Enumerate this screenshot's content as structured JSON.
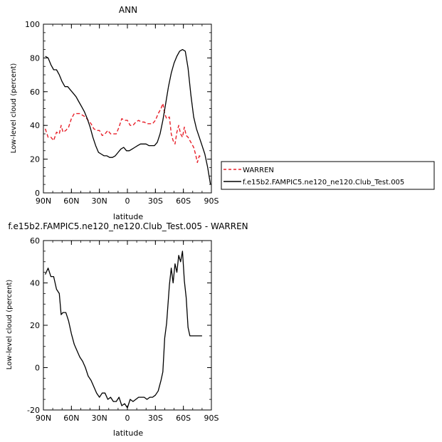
{
  "colors": {
    "model": "#000000",
    "obs": "#e8202a"
  },
  "chart_data": [
    {
      "type": "line",
      "title": "ANN",
      "xlabel": "latitude",
      "ylabel": "Low-level cloud (percent)",
      "xlim": [
        90,
        -90
      ],
      "ylim": [
        0,
        100
      ],
      "xticks": [
        90,
        60,
        30,
        0,
        -30,
        -60,
        -90
      ],
      "xtick_labels": [
        "90N",
        "60N",
        "30N",
        "0",
        "30S",
        "60S",
        "90S"
      ],
      "yticks": [
        0,
        20,
        40,
        60,
        80,
        100
      ],
      "ytick_labels": [
        "0",
        "20",
        "40",
        "60",
        "80",
        "100"
      ],
      "legend": {
        "placement": "right",
        "entries": [
          "WARREN",
          "f.e15b2.FAMPIC5.ne120_ne120.Club_Test.005"
        ]
      },
      "series": [
        {
          "name": "WARREN",
          "style": "dashed",
          "color": "#e8202a",
          "x": [
            88,
            85,
            82,
            79,
            76,
            73,
            71,
            69,
            66,
            63,
            60,
            57,
            54,
            51,
            48,
            45,
            42,
            39,
            36,
            33,
            30,
            27,
            24,
            21,
            18,
            15,
            12,
            9,
            6,
            3,
            0,
            -3,
            -6,
            -9,
            -12,
            -15,
            -18,
            -21,
            -24,
            -27,
            -30,
            -33,
            -36,
            -38,
            -40,
            -42,
            -45,
            -47,
            -49,
            -51,
            -53,
            -55,
            -57,
            -59,
            -61,
            -63,
            -65,
            -67,
            -69,
            -71,
            -73,
            -75,
            -77,
            -80
          ],
          "y": [
            38,
            33,
            33,
            31,
            36,
            35,
            40,
            36,
            37,
            39,
            44,
            47,
            47,
            47,
            46,
            45,
            43,
            41,
            38,
            37,
            37,
            34,
            35,
            37,
            35,
            35,
            35,
            39,
            44,
            43,
            43,
            40,
            40,
            42,
            43,
            42,
            42,
            41,
            41,
            41,
            43,
            47,
            50,
            53,
            47,
            44,
            45,
            35,
            31,
            29,
            36,
            40,
            35,
            33,
            39,
            34,
            33,
            31,
            29,
            27,
            23,
            18,
            22,
            21
          ]
        },
        {
          "name": "f.e15b2.FAMPIC5.ne120_ne120.Club_Test.005",
          "style": "solid",
          "color": "#000000",
          "x": [
            88,
            85,
            82,
            79,
            76,
            73,
            70,
            67,
            64,
            61,
            58,
            55,
            52,
            49,
            46,
            43,
            40,
            37,
            34,
            31,
            28,
            25,
            22,
            19,
            16,
            13,
            10,
            7,
            4,
            1,
            -2,
            -5,
            -8,
            -11,
            -14,
            -17,
            -20,
            -23,
            -26,
            -29,
            -32,
            -35,
            -38,
            -41,
            -44,
            -47,
            -50,
            -53,
            -56,
            -59,
            -62,
            -65,
            -68,
            -71,
            -74,
            -77,
            -80,
            -83,
            -86,
            -89
          ],
          "y": [
            81,
            80,
            76,
            73,
            73,
            70,
            66,
            63,
            63,
            61,
            59,
            57,
            54,
            51,
            48,
            44,
            39,
            33,
            28,
            24,
            23,
            22,
            22,
            21,
            21,
            22,
            24,
            26,
            27,
            25,
            25,
            26,
            27,
            28,
            29,
            29,
            29,
            28,
            28,
            28,
            30,
            35,
            43,
            53,
            63,
            71,
            77,
            81,
            84,
            85,
            84,
            74,
            58,
            45,
            38,
            33,
            28,
            23,
            15,
            5
          ]
        }
      ]
    },
    {
      "type": "line",
      "title": "f.e15b2.FAMPIC5.ne120_ne120.Club_Test.005 - WARREN",
      "xlabel": "latitude",
      "ylabel": "Low-level cloud (percent)",
      "xlim": [
        90,
        -90
      ],
      "ylim": [
        -20,
        60
      ],
      "xticks": [
        90,
        60,
        30,
        0,
        -30,
        -60,
        -90
      ],
      "xtick_labels": [
        "90N",
        "60N",
        "30N",
        "0",
        "30S",
        "60S",
        "90S"
      ],
      "yticks": [
        -20,
        0,
        20,
        40,
        60
      ],
      "ytick_labels": [
        "-20",
        "0",
        "20",
        "40",
        "60"
      ],
      "series": [
        {
          "name": "",
          "style": "solid",
          "color": "#000000",
          "x": [
            88,
            85,
            82,
            79,
            76,
            73,
            71,
            69,
            66,
            63,
            60,
            57,
            54,
            51,
            48,
            45,
            42,
            39,
            36,
            33,
            30,
            27,
            24,
            21,
            18,
            15,
            12,
            9,
            6,
            3,
            0,
            -3,
            -6,
            -9,
            -12,
            -15,
            -18,
            -21,
            -24,
            -27,
            -30,
            -33,
            -36,
            -38,
            -40,
            -42,
            -45,
            -47,
            -49,
            -51,
            -53,
            -55,
            -57,
            -59,
            -61,
            -63,
            -65,
            -67,
            -69,
            -71,
            -73,
            -75,
            -77,
            -80
          ],
          "y": [
            44,
            47,
            43,
            43,
            37,
            35,
            25,
            26,
            26,
            22,
            16,
            11,
            8,
            5,
            3,
            0,
            -4,
            -6,
            -9,
            -12,
            -14,
            -12,
            -12,
            -15,
            -14,
            -16,
            -16,
            -14,
            -18,
            -17,
            -19,
            -15,
            -16,
            -15,
            -14,
            -14,
            -14,
            -15,
            -14,
            -14,
            -13,
            -11,
            -6,
            -2,
            14,
            21,
            39,
            47,
            40,
            49,
            45,
            53,
            50,
            55,
            41,
            33,
            19,
            15,
            15,
            15,
            15,
            15,
            15,
            15
          ]
        }
      ]
    }
  ]
}
